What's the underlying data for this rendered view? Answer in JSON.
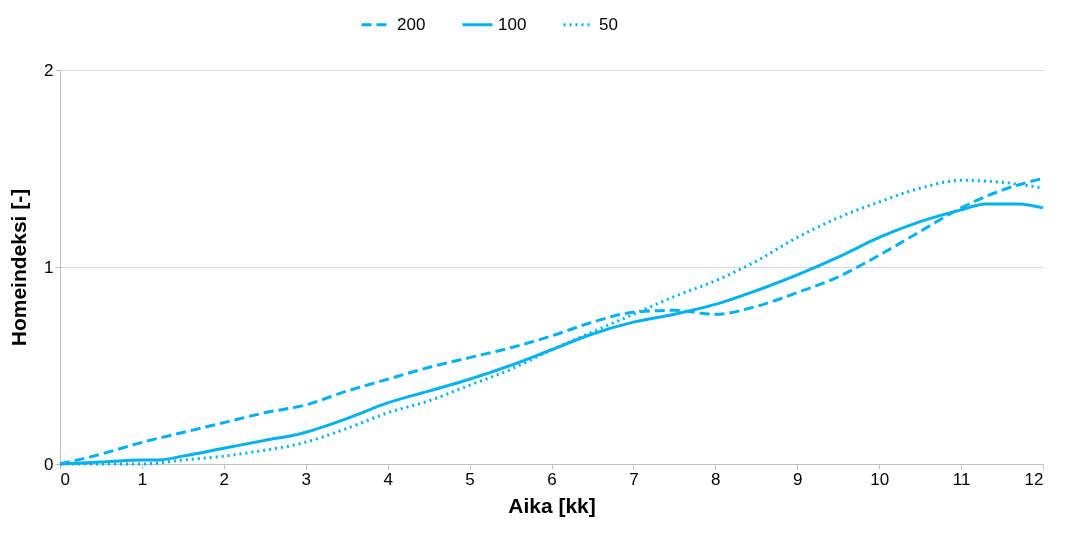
{
  "chart_data": {
    "type": "line",
    "xlabel": "Aika [kk]",
    "ylabel": "Homeindeksi [-]",
    "xlim": [
      0,
      12
    ],
    "ylim": [
      0,
      2
    ],
    "xticks": [
      0,
      1,
      2,
      3,
      4,
      5,
      6,
      7,
      8,
      9,
      10,
      11,
      12
    ],
    "yticks": [
      0,
      1,
      2
    ],
    "grid": "y",
    "legend": "top",
    "marker": "none",
    "series": [
      {
        "name": "200",
        "color": "#00b0f0",
        "line_style": "dashed",
        "x": [
          0,
          0.5,
          1,
          1.5,
          2,
          2.5,
          3,
          3.5,
          4,
          4.5,
          5,
          5.5,
          6,
          6.5,
          7,
          7.5,
          8,
          8.5,
          9,
          9.5,
          10,
          10.5,
          11,
          11.5,
          12
        ],
        "values": [
          0,
          0.05,
          0.11,
          0.16,
          0.21,
          0.26,
          0.3,
          0.37,
          0.43,
          0.49,
          0.54,
          0.59,
          0.65,
          0.72,
          0.77,
          0.78,
          0.76,
          0.8,
          0.87,
          0.95,
          1.06,
          1.18,
          1.3,
          1.39,
          1.45
        ]
      },
      {
        "name": "100",
        "color": "#00b0f0",
        "line_style": "solid",
        "x": [
          0,
          0.5,
          1,
          1.2,
          1.5,
          2,
          2.5,
          2.9,
          3.5,
          4,
          4.5,
          5,
          5.5,
          6,
          6.5,
          7,
          7.5,
          8,
          8.5,
          9,
          9.5,
          10,
          10.5,
          11,
          11.3,
          11.7,
          12
        ],
        "values": [
          0,
          0.01,
          0.02,
          0.02,
          0.04,
          0.08,
          0.12,
          0.15,
          0.23,
          0.31,
          0.37,
          0.43,
          0.5,
          0.58,
          0.66,
          0.72,
          0.76,
          0.81,
          0.88,
          0.96,
          1.05,
          1.15,
          1.23,
          1.29,
          1.32,
          1.32,
          1.3
        ]
      },
      {
        "name": "50",
        "color": "#00b0f0",
        "line_style": "dotted",
        "x": [
          0,
          0.5,
          1,
          1.5,
          2,
          2.5,
          2.9,
          3.5,
          4,
          4.5,
          5,
          5.5,
          6,
          6.5,
          7,
          7.5,
          8,
          8.5,
          9,
          9.5,
          10,
          10.5,
          11,
          11.5,
          12
        ],
        "values": [
          0,
          0,
          0,
          0.02,
          0.04,
          0.07,
          0.1,
          0.18,
          0.26,
          0.32,
          0.4,
          0.48,
          0.58,
          0.67,
          0.76,
          0.85,
          0.93,
          1.03,
          1.15,
          1.25,
          1.33,
          1.4,
          1.44,
          1.43,
          1.4
        ]
      }
    ]
  }
}
